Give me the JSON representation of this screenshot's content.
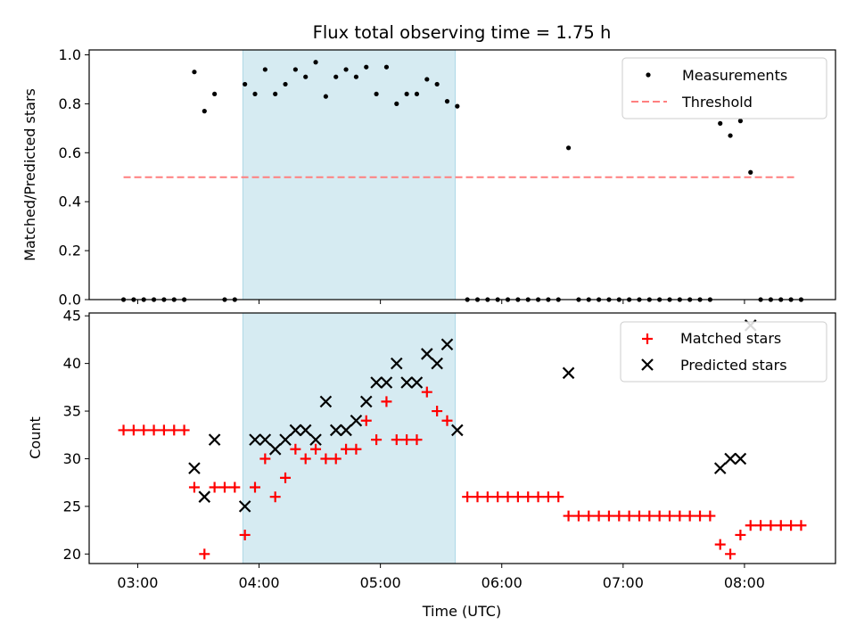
{
  "title": "Flux total observing time = 1.75 h",
  "colors": {
    "measurement": "#000000",
    "threshold": "#ff7f7f",
    "matched": "#ff0000",
    "predicted": "#000000",
    "shade": "#add8e6"
  },
  "chart_data": [
    {
      "type": "scatter",
      "ylabel": "Matched/Predicted stars",
      "xlim": [
        "02:36",
        "08:45"
      ],
      "ylim": [
        0,
        1.02
      ],
      "yticks": [
        "0.0",
        "0.2",
        "0.4",
        "0.6",
        "0.8",
        "1.0"
      ],
      "ytick_values": [
        0,
        0.2,
        0.4,
        0.6,
        0.8,
        1.0
      ],
      "shaded_span": [
        "03:52",
        "05:37"
      ],
      "legend": {
        "placement": "top-right",
        "labels": [
          "Measurements",
          "Threshold"
        ]
      },
      "threshold": {
        "name": "Threshold",
        "y": 0.5,
        "x_range": [
          "02:53",
          "08:26"
        ]
      },
      "series": [
        {
          "name": "Measurements",
          "points": [
            [
              "02:53",
              0
            ],
            [
              "02:58",
              0
            ],
            [
              "03:03",
              0
            ],
            [
              "03:08",
              0
            ],
            [
              "03:13",
              0
            ],
            [
              "03:18",
              0
            ],
            [
              "03:23",
              0
            ],
            [
              "03:28",
              0.93
            ],
            [
              "03:33",
              0.77
            ],
            [
              "03:38",
              0.84
            ],
            [
              "03:43",
              0
            ],
            [
              "03:48",
              0
            ],
            [
              "03:53",
              0.88
            ],
            [
              "03:58",
              0.84
            ],
            [
              "04:03",
              0.94
            ],
            [
              "04:08",
              0.84
            ],
            [
              "04:13",
              0.88
            ],
            [
              "04:18",
              0.94
            ],
            [
              "04:23",
              0.91
            ],
            [
              "04:28",
              0.97
            ],
            [
              "04:33",
              0.83
            ],
            [
              "04:38",
              0.91
            ],
            [
              "04:43",
              0.94
            ],
            [
              "04:48",
              0.91
            ],
            [
              "04:53",
              0.95
            ],
            [
              "04:58",
              0.84
            ],
            [
              "05:03",
              0.95
            ],
            [
              "05:08",
              0.8
            ],
            [
              "05:13",
              0.84
            ],
            [
              "05:18",
              0.84
            ],
            [
              "05:23",
              0.9
            ],
            [
              "05:28",
              0.88
            ],
            [
              "05:33",
              0.81
            ],
            [
              "05:38",
              0.79
            ],
            [
              "05:43",
              0
            ],
            [
              "05:48",
              0
            ],
            [
              "05:53",
              0
            ],
            [
              "05:58",
              0
            ],
            [
              "06:03",
              0
            ],
            [
              "06:08",
              0
            ],
            [
              "06:13",
              0
            ],
            [
              "06:18",
              0
            ],
            [
              "06:23",
              0
            ],
            [
              "06:28",
              0
            ],
            [
              "06:33",
              0.62
            ],
            [
              "06:38",
              0
            ],
            [
              "06:43",
              0
            ],
            [
              "06:48",
              0
            ],
            [
              "06:53",
              0
            ],
            [
              "06:58",
              0
            ],
            [
              "07:03",
              0
            ],
            [
              "07:08",
              0
            ],
            [
              "07:13",
              0
            ],
            [
              "07:18",
              0
            ],
            [
              "07:23",
              0
            ],
            [
              "07:28",
              0
            ],
            [
              "07:33",
              0
            ],
            [
              "07:38",
              0
            ],
            [
              "07:43",
              0
            ],
            [
              "07:48",
              0.72
            ],
            [
              "07:53",
              0.67
            ],
            [
              "07:58",
              0.73
            ],
            [
              "08:03",
              0.52
            ],
            [
              "08:08",
              0
            ],
            [
              "08:13",
              0
            ],
            [
              "08:18",
              0
            ],
            [
              "08:23",
              0
            ],
            [
              "08:28",
              0
            ]
          ]
        }
      ]
    },
    {
      "type": "scatter",
      "xlabel": "Time (UTC)",
      "ylabel": "Count",
      "xlim": [
        "02:36",
        "08:45"
      ],
      "ylim": [
        19,
        45.3
      ],
      "xticks": [
        "03:00",
        "04:00",
        "05:00",
        "06:00",
        "07:00",
        "08:00"
      ],
      "yticks": [
        "20",
        "25",
        "30",
        "35",
        "40",
        "45"
      ],
      "ytick_values": [
        20,
        25,
        30,
        35,
        40,
        45
      ],
      "shaded_span": [
        "03:52",
        "05:37"
      ],
      "legend": {
        "placement": "top-right",
        "labels": [
          "Matched stars",
          "Predicted stars"
        ]
      },
      "series": [
        {
          "name": "Matched stars",
          "points": [
            [
              "02:53",
              33
            ],
            [
              "02:58",
              33
            ],
            [
              "03:03",
              33
            ],
            [
              "03:08",
              33
            ],
            [
              "03:13",
              33
            ],
            [
              "03:18",
              33
            ],
            [
              "03:23",
              33
            ],
            [
              "03:28",
              27
            ],
            [
              "03:33",
              20
            ],
            [
              "03:38",
              27
            ],
            [
              "03:43",
              27
            ],
            [
              "03:48",
              27
            ],
            [
              "03:53",
              22
            ],
            [
              "03:58",
              27
            ],
            [
              "04:03",
              30
            ],
            [
              "04:08",
              26
            ],
            [
              "04:13",
              28
            ],
            [
              "04:18",
              31
            ],
            [
              "04:23",
              30
            ],
            [
              "04:28",
              31
            ],
            [
              "04:33",
              30
            ],
            [
              "04:38",
              30
            ],
            [
              "04:43",
              31
            ],
            [
              "04:48",
              31
            ],
            [
              "04:53",
              34
            ],
            [
              "04:58",
              32
            ],
            [
              "05:03",
              36
            ],
            [
              "05:08",
              32
            ],
            [
              "05:13",
              32
            ],
            [
              "05:18",
              32
            ],
            [
              "05:23",
              37
            ],
            [
              "05:28",
              35
            ],
            [
              "05:33",
              34
            ],
            [
              "05:43",
              26
            ],
            [
              "05:48",
              26
            ],
            [
              "05:53",
              26
            ],
            [
              "05:58",
              26
            ],
            [
              "06:03",
              26
            ],
            [
              "06:08",
              26
            ],
            [
              "06:13",
              26
            ],
            [
              "06:18",
              26
            ],
            [
              "06:23",
              26
            ],
            [
              "06:28",
              26
            ],
            [
              "06:33",
              24
            ],
            [
              "06:38",
              24
            ],
            [
              "06:43",
              24
            ],
            [
              "06:48",
              24
            ],
            [
              "06:53",
              24
            ],
            [
              "06:58",
              24
            ],
            [
              "07:03",
              24
            ],
            [
              "07:08",
              24
            ],
            [
              "07:13",
              24
            ],
            [
              "07:18",
              24
            ],
            [
              "07:23",
              24
            ],
            [
              "07:28",
              24
            ],
            [
              "07:33",
              24
            ],
            [
              "07:38",
              24
            ],
            [
              "07:43",
              24
            ],
            [
              "07:48",
              21
            ],
            [
              "07:53",
              20
            ],
            [
              "07:58",
              22
            ],
            [
              "08:03",
              23
            ],
            [
              "08:08",
              23
            ],
            [
              "08:13",
              23
            ],
            [
              "08:18",
              23
            ],
            [
              "08:23",
              23
            ],
            [
              "08:28",
              23
            ]
          ]
        },
        {
          "name": "Predicted stars",
          "points": [
            [
              "03:28",
              29
            ],
            [
              "03:33",
              26
            ],
            [
              "03:38",
              32
            ],
            [
              "03:53",
              25
            ],
            [
              "03:58",
              32
            ],
            [
              "04:03",
              32
            ],
            [
              "04:08",
              31
            ],
            [
              "04:13",
              32
            ],
            [
              "04:18",
              33
            ],
            [
              "04:23",
              33
            ],
            [
              "04:28",
              32
            ],
            [
              "04:33",
              36
            ],
            [
              "04:38",
              33
            ],
            [
              "04:43",
              33
            ],
            [
              "04:48",
              34
            ],
            [
              "04:53",
              36
            ],
            [
              "04:58",
              38
            ],
            [
              "05:03",
              38
            ],
            [
              "05:08",
              40
            ],
            [
              "05:13",
              38
            ],
            [
              "05:18",
              38
            ],
            [
              "05:23",
              41
            ],
            [
              "05:28",
              40
            ],
            [
              "05:33",
              42
            ],
            [
              "05:38",
              33
            ],
            [
              "06:33",
              39
            ],
            [
              "07:48",
              29
            ],
            [
              "07:53",
              30
            ],
            [
              "07:58",
              30
            ],
            [
              "08:03",
              44
            ]
          ]
        }
      ]
    }
  ]
}
